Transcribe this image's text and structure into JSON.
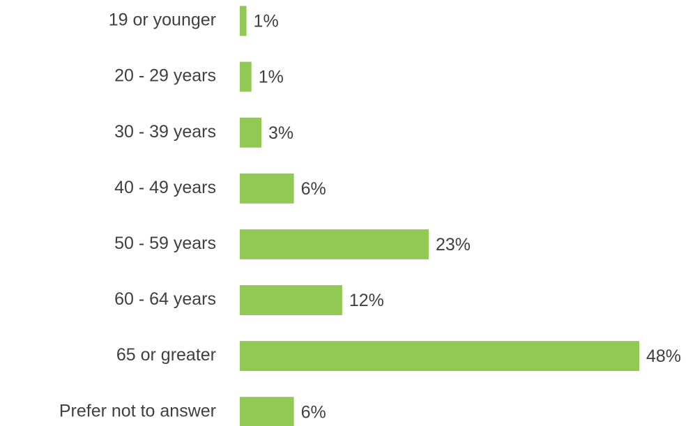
{
  "chart_data": {
    "type": "barh",
    "categories": [
      "19 or younger",
      "20 - 29 years",
      "30 - 39 years",
      "40 - 49 years",
      "50 - 59 years",
      "60 - 64 years",
      "65 or greater",
      "Prefer not to answer"
    ],
    "values": [
      0.8,
      1.4,
      2.6,
      6.5,
      22.7,
      12.3,
      48,
      6.5
    ],
    "value_labels": [
      "1%",
      "1%",
      "3%",
      "6%",
      "23%",
      "12%",
      "48%",
      "6%"
    ],
    "color": "#92c955"
  }
}
